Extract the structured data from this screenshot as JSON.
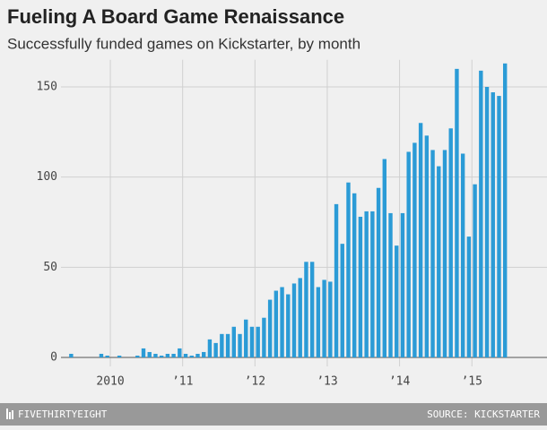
{
  "chart_data": {
    "type": "bar",
    "title": "Fueling A Board Game Renaissance",
    "subtitle": "Successfully funded games on Kickstarter, by month",
    "categories": [
      null,
      null,
      null,
      null,
      null,
      null,
      null,
      "2010",
      null,
      null,
      null,
      null,
      null,
      null,
      null,
      null,
      null,
      null,
      null,
      "’11",
      null,
      null,
      null,
      null,
      null,
      null,
      null,
      null,
      null,
      null,
      null,
      "’12",
      null,
      null,
      null,
      null,
      null,
      null,
      null,
      null,
      null,
      null,
      null,
      "’13",
      null,
      null,
      null,
      null,
      null,
      null,
      null,
      null,
      null,
      null,
      null,
      "’14",
      null,
      null,
      null,
      null,
      null,
      null,
      null,
      null,
      null,
      null,
      null,
      "’15",
      null,
      null,
      null,
      null,
      null
    ],
    "values": [
      2,
      0,
      0,
      0,
      0,
      2,
      1,
      0,
      1,
      0,
      0,
      1,
      5,
      3,
      2,
      1,
      2,
      2,
      5,
      2,
      1,
      2,
      3,
      10,
      8,
      13,
      13,
      17,
      13,
      21,
      17,
      17,
      22,
      32,
      37,
      39,
      35,
      41,
      44,
      53,
      53,
      39,
      43,
      42,
      85,
      63,
      97,
      91,
      78,
      81,
      81,
      94,
      110,
      80,
      62,
      80,
      114,
      119,
      130,
      123,
      115,
      106,
      115,
      127,
      160,
      113,
      67,
      96,
      159,
      150,
      147,
      145,
      163
    ],
    "color": "#2b9bd6",
    "ylim": [
      0,
      165
    ],
    "yticks": [
      0,
      50,
      100,
      150
    ],
    "grid": true
  },
  "footer": {
    "brand": "FIVETHIRTYEIGHT",
    "source": "SOURCE: KICKSTARTER"
  }
}
